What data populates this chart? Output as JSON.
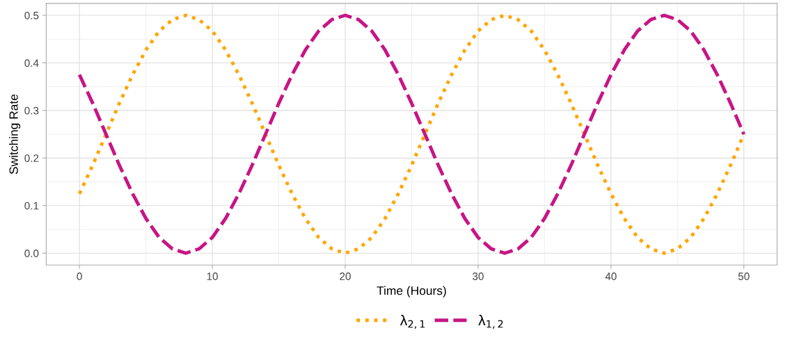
{
  "chart_data": {
    "type": "line",
    "xlabel": "Time (Hours)",
    "ylabel": "Switching Rate",
    "x": [
      0,
      1,
      2,
      3,
      4,
      5,
      6,
      7,
      8,
      9,
      10,
      11,
      12,
      13,
      14,
      15,
      16,
      17,
      18,
      19,
      20,
      21,
      22,
      23,
      24,
      25,
      26,
      27,
      28,
      29,
      30,
      31,
      32,
      33,
      34,
      35,
      36,
      37,
      38,
      39,
      40,
      41,
      42,
      43,
      44,
      45,
      46,
      47,
      48,
      49,
      50
    ],
    "series": [
      {
        "name": "λ$_{2,1}$",
        "color": "#ffa500",
        "line_style": "dotted",
        "values": [
          0.125,
          0.185,
          0.25,
          0.315,
          0.375,
          0.427,
          0.467,
          0.491,
          0.5,
          0.491,
          0.467,
          0.427,
          0.375,
          0.315,
          0.25,
          0.185,
          0.125,
          0.073,
          0.033,
          0.009,
          0,
          0.009,
          0.033,
          0.073,
          0.125,
          0.185,
          0.25,
          0.315,
          0.375,
          0.427,
          0.467,
          0.491,
          0.5,
          0.491,
          0.467,
          0.427,
          0.375,
          0.315,
          0.25,
          0.185,
          0.125,
          0.073,
          0.033,
          0.009,
          0,
          0.009,
          0.033,
          0.073,
          0.125,
          0.185,
          0.25
        ]
      },
      {
        "name": "λ$_{1,2}$",
        "color": "#c71585",
        "line_style": "dashed",
        "values": [
          0.375,
          0.315,
          0.25,
          0.185,
          0.125,
          0.073,
          0.033,
          0.009,
          0,
          0.009,
          0.033,
          0.073,
          0.125,
          0.185,
          0.25,
          0.315,
          0.375,
          0.427,
          0.467,
          0.491,
          0.5,
          0.491,
          0.467,
          0.427,
          0.375,
          0.315,
          0.25,
          0.185,
          0.125,
          0.073,
          0.033,
          0.009,
          0,
          0.009,
          0.033,
          0.073,
          0.125,
          0.185,
          0.25,
          0.315,
          0.375,
          0.427,
          0.467,
          0.491,
          0.5,
          0.491,
          0.467,
          0.427,
          0.375,
          0.315,
          0.25
        ]
      }
    ],
    "xlim": [
      -2.5,
      52.5
    ],
    "xticks": [
      0,
      10,
      20,
      30,
      40,
      50
    ],
    "ylim": [
      -0.025,
      0.525
    ],
    "yticks": [
      {
        "value": 0,
        "label": "0.0"
      },
      {
        "value": 0.1,
        "label": "0.1"
      },
      {
        "value": 0.2,
        "label": "0.2"
      },
      {
        "value": 0.3,
        "label": "0.3"
      },
      {
        "value": 0.4,
        "label": "0.4"
      },
      {
        "value": 0.5,
        "label": "0.5"
      }
    ],
    "grid": true,
    "legend": "bottom"
  }
}
